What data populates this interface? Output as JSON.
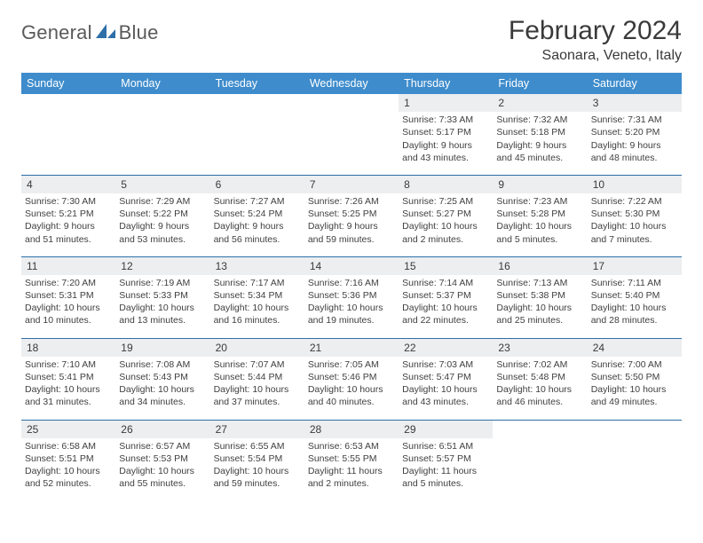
{
  "logo": {
    "textA": "General",
    "textB": "Blue"
  },
  "header": {
    "month": "February 2024",
    "location": "Saonara, Veneto, Italy"
  },
  "colors": {
    "headerBar": "#3e8ccc",
    "rule": "#2f6fa8",
    "dayNumBg": "#eceef0",
    "text": "#3a3a3a"
  },
  "weekdays": [
    "Sunday",
    "Monday",
    "Tuesday",
    "Wednesday",
    "Thursday",
    "Friday",
    "Saturday"
  ],
  "weeks": [
    [
      null,
      null,
      null,
      null,
      {
        "n": "1",
        "sr": "7:33 AM",
        "ss": "5:17 PM",
        "dl": "9 hours and 43 minutes."
      },
      {
        "n": "2",
        "sr": "7:32 AM",
        "ss": "5:18 PM",
        "dl": "9 hours and 45 minutes."
      },
      {
        "n": "3",
        "sr": "7:31 AM",
        "ss": "5:20 PM",
        "dl": "9 hours and 48 minutes."
      }
    ],
    [
      {
        "n": "4",
        "sr": "7:30 AM",
        "ss": "5:21 PM",
        "dl": "9 hours and 51 minutes."
      },
      {
        "n": "5",
        "sr": "7:29 AM",
        "ss": "5:22 PM",
        "dl": "9 hours and 53 minutes."
      },
      {
        "n": "6",
        "sr": "7:27 AM",
        "ss": "5:24 PM",
        "dl": "9 hours and 56 minutes."
      },
      {
        "n": "7",
        "sr": "7:26 AM",
        "ss": "5:25 PM",
        "dl": "9 hours and 59 minutes."
      },
      {
        "n": "8",
        "sr": "7:25 AM",
        "ss": "5:27 PM",
        "dl": "10 hours and 2 minutes."
      },
      {
        "n": "9",
        "sr": "7:23 AM",
        "ss": "5:28 PM",
        "dl": "10 hours and 5 minutes."
      },
      {
        "n": "10",
        "sr": "7:22 AM",
        "ss": "5:30 PM",
        "dl": "10 hours and 7 minutes."
      }
    ],
    [
      {
        "n": "11",
        "sr": "7:20 AM",
        "ss": "5:31 PM",
        "dl": "10 hours and 10 minutes."
      },
      {
        "n": "12",
        "sr": "7:19 AM",
        "ss": "5:33 PM",
        "dl": "10 hours and 13 minutes."
      },
      {
        "n": "13",
        "sr": "7:17 AM",
        "ss": "5:34 PM",
        "dl": "10 hours and 16 minutes."
      },
      {
        "n": "14",
        "sr": "7:16 AM",
        "ss": "5:36 PM",
        "dl": "10 hours and 19 minutes."
      },
      {
        "n": "15",
        "sr": "7:14 AM",
        "ss": "5:37 PM",
        "dl": "10 hours and 22 minutes."
      },
      {
        "n": "16",
        "sr": "7:13 AM",
        "ss": "5:38 PM",
        "dl": "10 hours and 25 minutes."
      },
      {
        "n": "17",
        "sr": "7:11 AM",
        "ss": "5:40 PM",
        "dl": "10 hours and 28 minutes."
      }
    ],
    [
      {
        "n": "18",
        "sr": "7:10 AM",
        "ss": "5:41 PM",
        "dl": "10 hours and 31 minutes."
      },
      {
        "n": "19",
        "sr": "7:08 AM",
        "ss": "5:43 PM",
        "dl": "10 hours and 34 minutes."
      },
      {
        "n": "20",
        "sr": "7:07 AM",
        "ss": "5:44 PM",
        "dl": "10 hours and 37 minutes."
      },
      {
        "n": "21",
        "sr": "7:05 AM",
        "ss": "5:46 PM",
        "dl": "10 hours and 40 minutes."
      },
      {
        "n": "22",
        "sr": "7:03 AM",
        "ss": "5:47 PM",
        "dl": "10 hours and 43 minutes."
      },
      {
        "n": "23",
        "sr": "7:02 AM",
        "ss": "5:48 PM",
        "dl": "10 hours and 46 minutes."
      },
      {
        "n": "24",
        "sr": "7:00 AM",
        "ss": "5:50 PM",
        "dl": "10 hours and 49 minutes."
      }
    ],
    [
      {
        "n": "25",
        "sr": "6:58 AM",
        "ss": "5:51 PM",
        "dl": "10 hours and 52 minutes."
      },
      {
        "n": "26",
        "sr": "6:57 AM",
        "ss": "5:53 PM",
        "dl": "10 hours and 55 minutes."
      },
      {
        "n": "27",
        "sr": "6:55 AM",
        "ss": "5:54 PM",
        "dl": "10 hours and 59 minutes."
      },
      {
        "n": "28",
        "sr": "6:53 AM",
        "ss": "5:55 PM",
        "dl": "11 hours and 2 minutes."
      },
      {
        "n": "29",
        "sr": "6:51 AM",
        "ss": "5:57 PM",
        "dl": "11 hours and 5 minutes."
      },
      null,
      null
    ]
  ],
  "labels": {
    "sunrise": "Sunrise:",
    "sunset": "Sunset:",
    "daylight": "Daylight:"
  }
}
